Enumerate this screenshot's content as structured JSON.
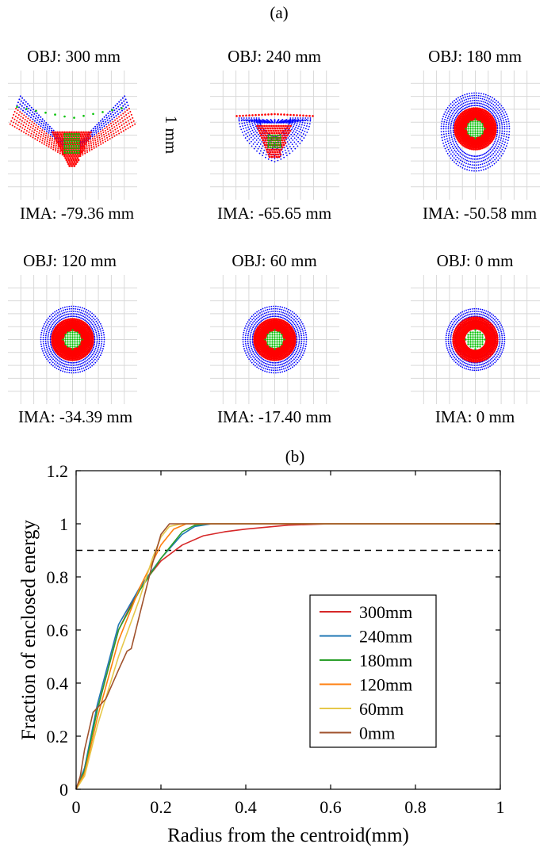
{
  "part_a": {
    "label": "(a)",
    "scale_label": "1 mm",
    "panels": [
      {
        "obj": "OBJ: 300 mm",
        "ima": "IMA: -79.36 mm",
        "shape": "vee"
      },
      {
        "obj": "OBJ: 240 mm",
        "ima": "IMA: -65.65 mm",
        "shape": "tri"
      },
      {
        "obj": "OBJ: 180 mm",
        "ima": "IMA: -50.58 mm",
        "shape": "round"
      },
      {
        "obj": "OBJ: 120 mm",
        "ima": "IMA: -34.39 mm",
        "shape": "circle"
      },
      {
        "obj": "OBJ: 60 mm",
        "ima": "IMA: -17.40 mm",
        "shape": "circle"
      },
      {
        "obj": "OBJ: 0 mm",
        "ima": "IMA: 0 mm",
        "shape": "ring"
      }
    ],
    "colors": {
      "red": "#ff0000",
      "blue": "#0000ff",
      "green": "#00c000",
      "grid": "#d9d9d9"
    }
  },
  "part_b": {
    "label": "(b)"
  },
  "chart_data": {
    "type": "line",
    "xlabel": "Radius from the centroid(mm)",
    "ylabel": "Fraction of enclosed energy",
    "xlim": [
      0,
      1
    ],
    "ylim": [
      0,
      1.2
    ],
    "xticks": [
      "0",
      "0.2",
      "0.4",
      "0.6",
      "0.8",
      "1"
    ],
    "yticks": [
      "0",
      "0.2",
      "0.4",
      "0.6",
      "0.8",
      "1",
      "1.2"
    ],
    "threshold": 0.9,
    "legend_position": "center-right",
    "series": [
      {
        "name": "300mm",
        "color": "#d62728",
        "x": [
          0,
          0.02,
          0.05,
          0.1,
          0.15,
          0.2,
          0.25,
          0.3,
          0.35,
          0.4,
          0.5,
          0.6,
          0.8,
          1.0
        ],
        "y": [
          0,
          0.08,
          0.3,
          0.6,
          0.76,
          0.86,
          0.92,
          0.955,
          0.97,
          0.98,
          0.995,
          1.0,
          1.0,
          1.0
        ]
      },
      {
        "name": "240mm",
        "color": "#1f77b4",
        "x": [
          0,
          0.02,
          0.05,
          0.1,
          0.15,
          0.2,
          0.25,
          0.28,
          0.32,
          0.4,
          0.6,
          1.0
        ],
        "y": [
          0,
          0.08,
          0.32,
          0.62,
          0.76,
          0.87,
          0.96,
          0.99,
          1.0,
          1.0,
          1.0,
          1.0
        ]
      },
      {
        "name": "180mm",
        "color": "#2ca02c",
        "x": [
          0,
          0.02,
          0.05,
          0.1,
          0.15,
          0.2,
          0.25,
          0.28,
          0.31,
          0.4,
          0.6,
          1.0
        ],
        "y": [
          0,
          0.07,
          0.3,
          0.6,
          0.75,
          0.87,
          0.97,
          0.995,
          1.0,
          1.0,
          1.0,
          1.0
        ]
      },
      {
        "name": "120mm",
        "color": "#ff7f0e",
        "x": [
          0,
          0.02,
          0.05,
          0.1,
          0.15,
          0.2,
          0.23,
          0.26,
          0.3,
          0.4,
          0.6,
          1.0
        ],
        "y": [
          0,
          0.06,
          0.27,
          0.56,
          0.76,
          0.92,
          0.98,
          1.0,
          1.0,
          1.0,
          1.0,
          1.0
        ]
      },
      {
        "name": "60mm",
        "color": "#e6c84a",
        "x": [
          0,
          0.02,
          0.05,
          0.1,
          0.15,
          0.18,
          0.2,
          0.22,
          0.25,
          0.3,
          0.6,
          1.0
        ],
        "y": [
          0,
          0.05,
          0.24,
          0.5,
          0.72,
          0.87,
          0.95,
          0.99,
          1.0,
          1.0,
          1.0,
          1.0
        ]
      },
      {
        "name": "0mm",
        "color": "#a0522d",
        "x": [
          0,
          0.01,
          0.02,
          0.04,
          0.07,
          0.1,
          0.12,
          0.13,
          0.15,
          0.18,
          0.2,
          0.22,
          0.25,
          0.3,
          0.6,
          1.0
        ],
        "y": [
          0,
          0.05,
          0.15,
          0.29,
          0.34,
          0.45,
          0.52,
          0.53,
          0.66,
          0.85,
          0.96,
          1.0,
          1.0,
          1.0,
          1.0,
          1.0
        ]
      }
    ]
  }
}
